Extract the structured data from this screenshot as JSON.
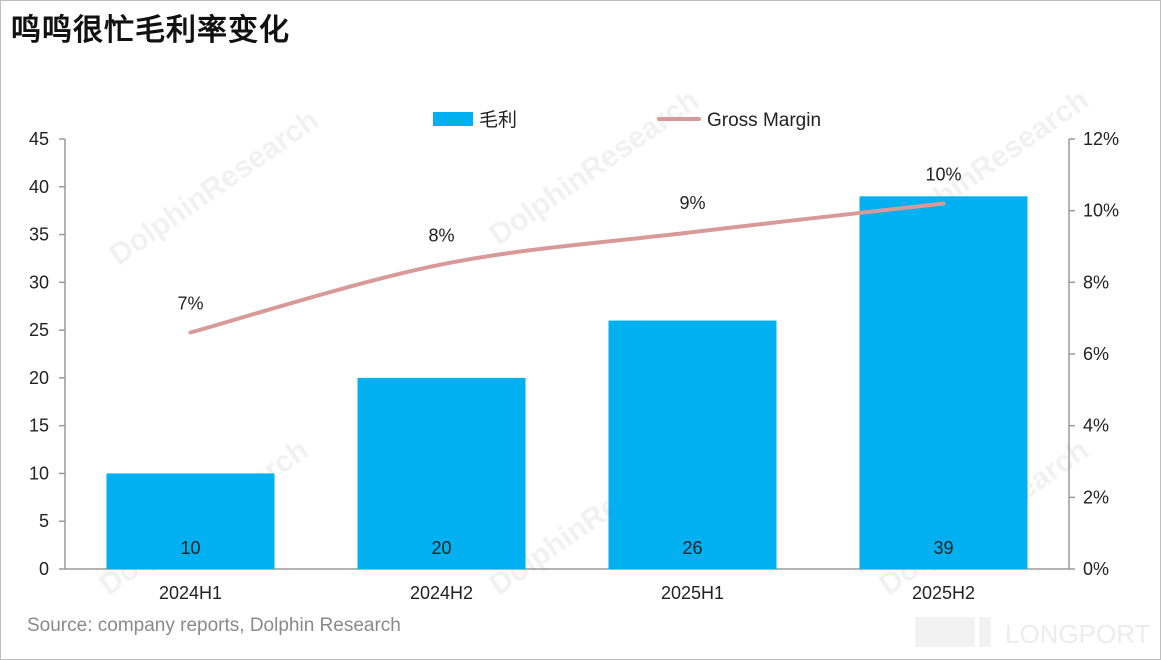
{
  "title": "鸣鸣很忙毛利率变化",
  "source": "Source: company reports, Dolphin Research",
  "watermark": "DolphinResearch",
  "logo_text": "LONGPORT",
  "chart_data": {
    "type": "bar+line",
    "categories": [
      "2024H1",
      "2024H2",
      "2025H1",
      "2025H2"
    ],
    "series": [
      {
        "name": "毛利",
        "type": "bar",
        "axis": "left",
        "color": "#00B0F0",
        "values": [
          10,
          20,
          26,
          39
        ],
        "labels": [
          "10",
          "20",
          "26",
          "39"
        ]
      },
      {
        "name": "Gross Margin",
        "type": "line",
        "axis": "right",
        "color": "#D89A98",
        "values": [
          6.6,
          8.5,
          9.4,
          10.2
        ],
        "labels": [
          "7%",
          "8%",
          "9%",
          "10%"
        ]
      }
    ],
    "left_axis": {
      "min": 0,
      "max": 45,
      "ticks": [
        "0",
        "5",
        "10",
        "15",
        "20",
        "25",
        "30",
        "35",
        "40",
        "45"
      ]
    },
    "right_axis": {
      "min": 0,
      "max": 12,
      "ticks": [
        "0%",
        "2%",
        "4%",
        "6%",
        "8%",
        "10%",
        "12%"
      ]
    },
    "legend_position": "top-center",
    "grid": false
  }
}
